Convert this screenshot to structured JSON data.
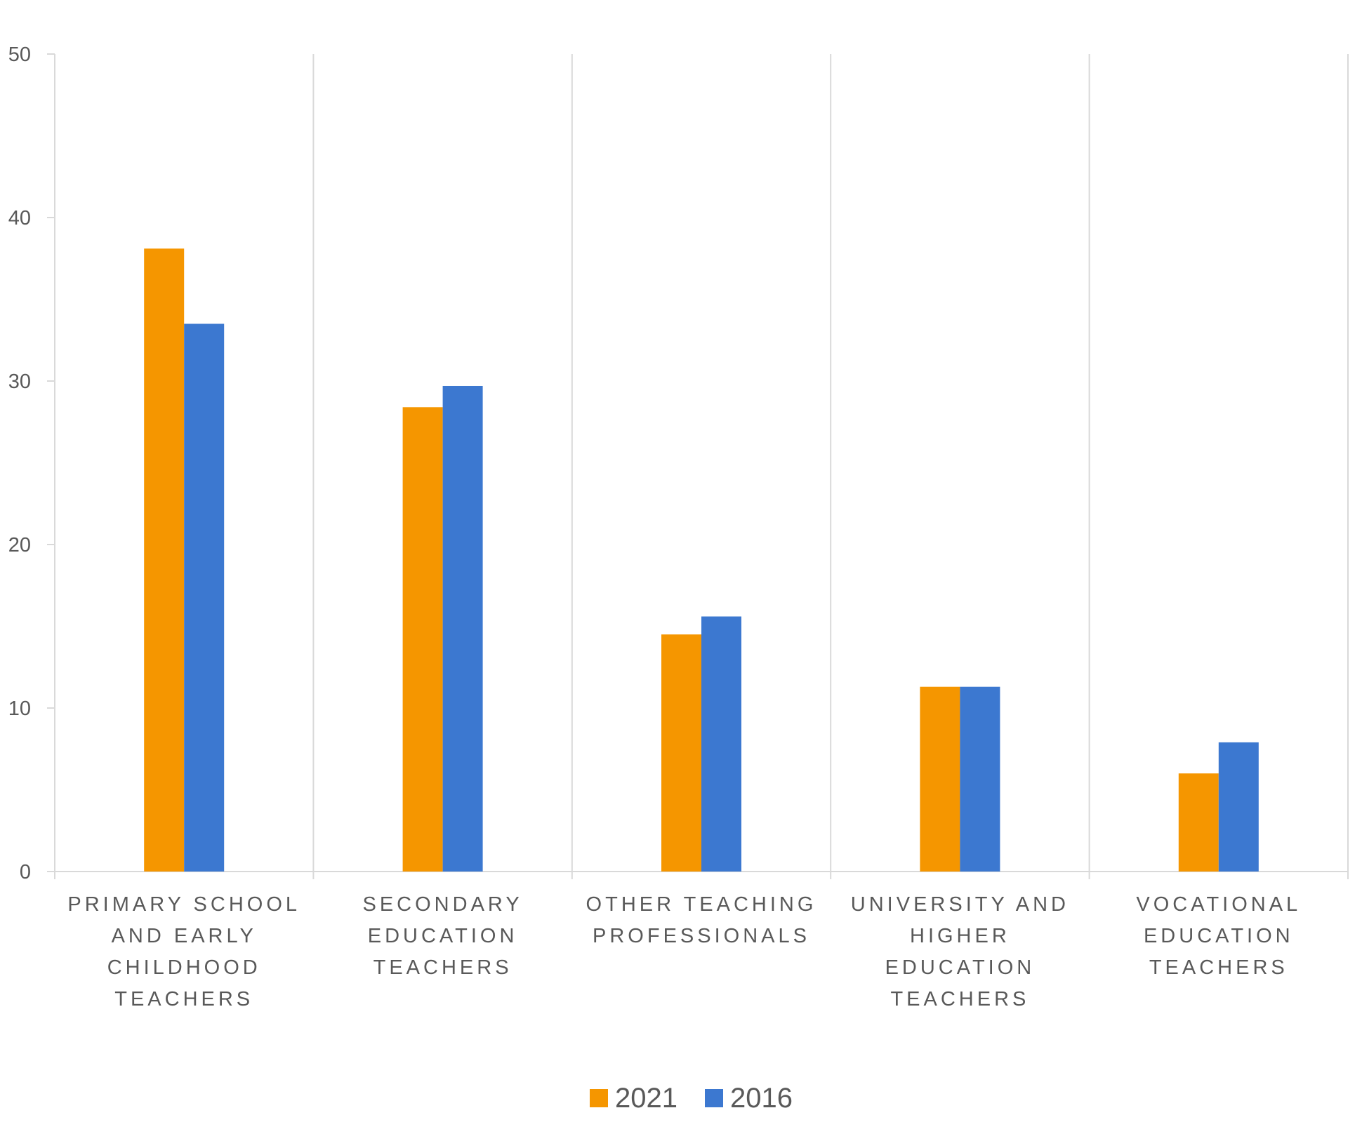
{
  "chart_data": {
    "type": "bar",
    "categories": [
      [
        "PRIMARY SCHOOL",
        "AND EARLY",
        "CHILDHOOD",
        "TEACHERS"
      ],
      [
        "SECONDARY",
        "EDUCATION",
        "TEACHERS"
      ],
      [
        "OTHER TEACHING",
        "PROFESSIONALS"
      ],
      [
        "UNIVERSITY AND",
        "HIGHER",
        "EDUCATION",
        "TEACHERS"
      ],
      [
        "VOCATIONAL",
        "EDUCATION",
        "TEACHERS"
      ]
    ],
    "series": [
      {
        "name": "2021",
        "color": "#F59600",
        "values": [
          38.1,
          28.4,
          14.5,
          11.3,
          6.0
        ]
      },
      {
        "name": "2016",
        "color": "#3C78D0",
        "values": [
          33.5,
          29.7,
          15.6,
          11.3,
          7.9
        ]
      }
    ],
    "title": "",
    "xlabel": "",
    "ylabel": "",
    "ylim": [
      0,
      50
    ],
    "yticks": [
      "0",
      "10",
      "20",
      "30",
      "40",
      "50"
    ],
    "grid": "vertical-category-separators",
    "legend": "bottom-center"
  }
}
